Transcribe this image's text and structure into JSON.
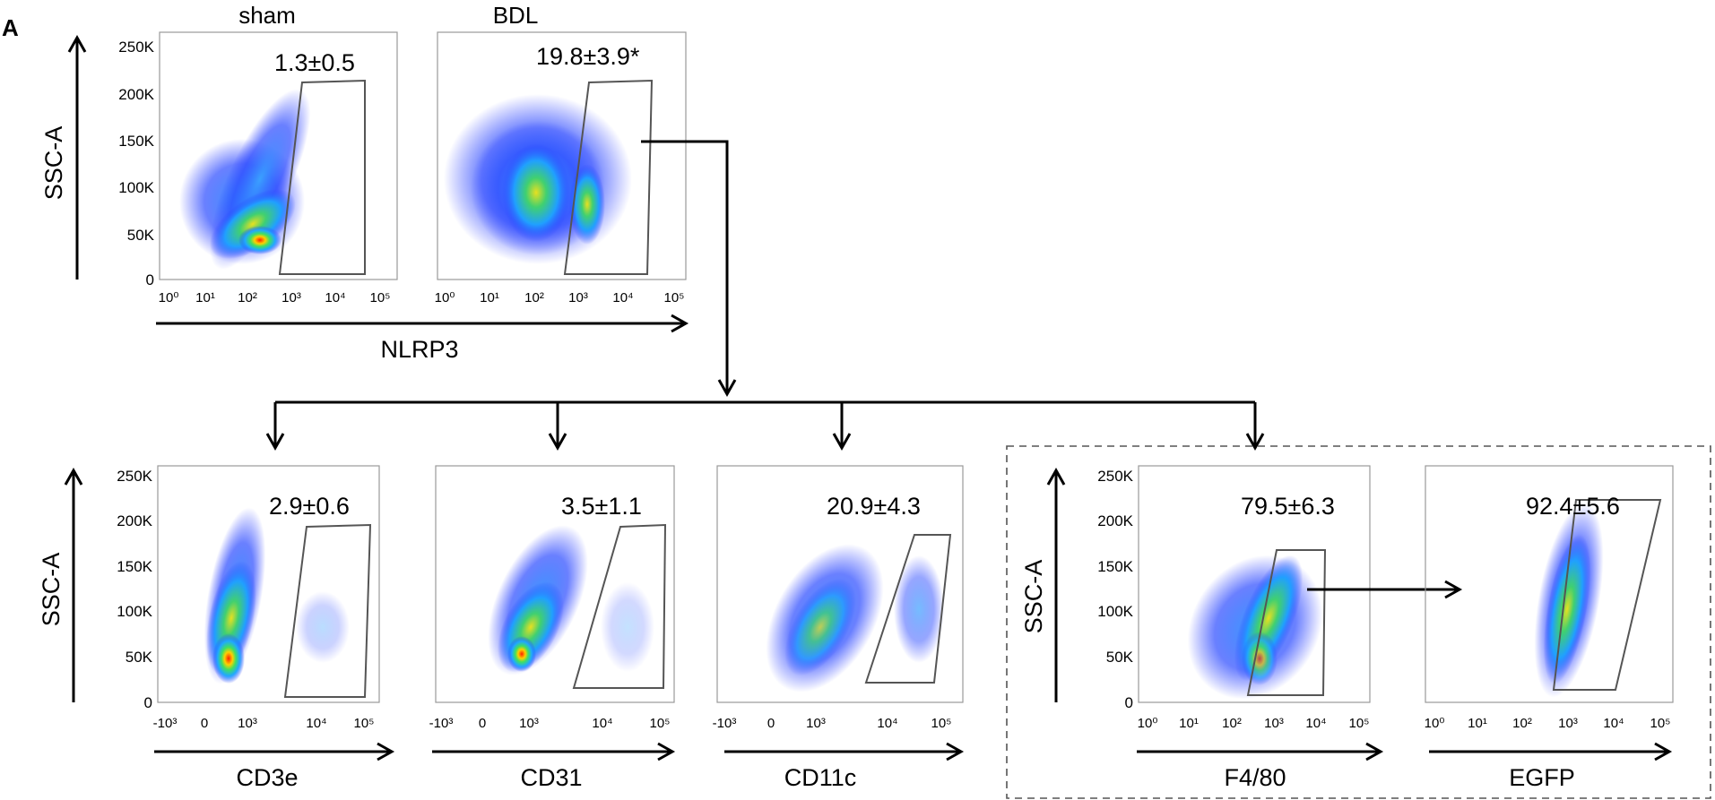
{
  "figure_label": "A",
  "chart_data": [
    {
      "type": "scatter",
      "title": "sham",
      "xlabel": "NLRP3",
      "ylabel": "SSC-A",
      "x_scale": "log",
      "x_ticks": [
        "10⁰",
        "10¹",
        "10²",
        "10³",
        "10⁴",
        "10⁵"
      ],
      "y_ticks": [
        "0",
        "50K",
        "100K",
        "150K",
        "200K",
        "250K"
      ],
      "ylim": [
        0,
        250000
      ],
      "gate_percent": "1.3±0.5",
      "colors": [
        "#0000ff",
        "#00c8ff",
        "#00ff80",
        "#ffff00",
        "#ff0000"
      ]
    },
    {
      "type": "scatter",
      "title": "BDL",
      "xlabel": "NLRP3",
      "ylabel": "SSC-A",
      "x_scale": "log",
      "x_ticks": [
        "10⁰",
        "10¹",
        "10²",
        "10³",
        "10⁴",
        "10⁵"
      ],
      "y_ticks": [
        "0",
        "50K",
        "100K",
        "150K",
        "200K",
        "250K"
      ],
      "ylim": [
        0,
        250000
      ],
      "gate_percent": "19.8±3.9*"
    },
    {
      "type": "scatter",
      "xlabel": "CD3e",
      "ylabel": "SSC-A",
      "x_ticks": [
        "-10³",
        "0",
        "10³",
        "10⁴",
        "10⁵"
      ],
      "y_ticks": [
        "0",
        "50K",
        "100K",
        "150K",
        "200K",
        "250K"
      ],
      "ylim": [
        0,
        250000
      ],
      "gate_percent": "2.9±0.6"
    },
    {
      "type": "scatter",
      "xlabel": "CD31",
      "x_ticks": [
        "-10³",
        "0",
        "10³",
        "10⁴",
        "10⁵"
      ],
      "gate_percent": "3.5±1.1"
    },
    {
      "type": "scatter",
      "xlabel": "CD11c",
      "x_ticks": [
        "-10³",
        "0",
        "10³",
        "10⁴",
        "10⁵"
      ],
      "gate_percent": "20.9±4.3"
    },
    {
      "type": "scatter",
      "xlabel": "F4/80",
      "ylabel": "SSC-A",
      "x_scale": "log",
      "x_ticks": [
        "10⁰",
        "10¹",
        "10²",
        "10³",
        "10⁴",
        "10⁵"
      ],
      "y_ticks": [
        "0",
        "50K",
        "100K",
        "150K",
        "200K",
        "250K"
      ],
      "ylim": [
        0,
        250000
      ],
      "gate_percent": "79.5±6.3"
    },
    {
      "type": "scatter",
      "xlabel": "EGFP",
      "x_scale": "log",
      "x_ticks": [
        "10⁰",
        "10¹",
        "10²",
        "10³",
        "10⁴",
        "10⁵"
      ],
      "gate_percent": "92.4±5.6"
    }
  ]
}
